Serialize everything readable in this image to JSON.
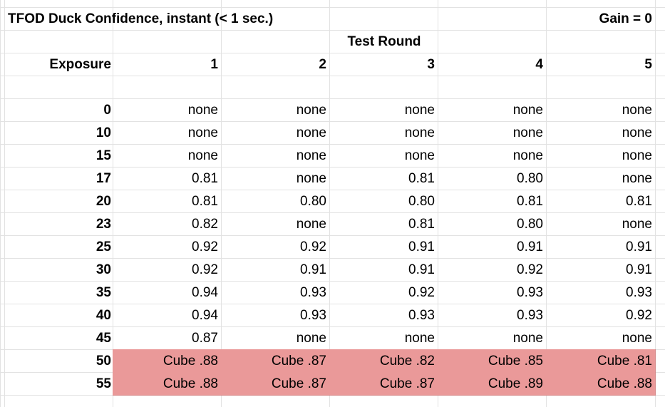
{
  "title": "TFOD Duck Confidence, instant (< 1 sec.)",
  "gain": "Gain = 0",
  "test_round_label": "Test Round",
  "exposure_label": "Exposure",
  "rounds": [
    "1",
    "2",
    "3",
    "4",
    "5"
  ],
  "highlight_color": "#ea9999",
  "rows": [
    {
      "exposure": "0",
      "values": [
        "none",
        "none",
        "none",
        "none",
        "none"
      ],
      "highlight": false
    },
    {
      "exposure": "10",
      "values": [
        "none",
        "none",
        "none",
        "none",
        "none"
      ],
      "highlight": false
    },
    {
      "exposure": "15",
      "values": [
        "none",
        "none",
        "none",
        "none",
        "none"
      ],
      "highlight": false
    },
    {
      "exposure": "17",
      "values": [
        "0.81",
        "none",
        "0.81",
        "0.80",
        "none"
      ],
      "highlight": false
    },
    {
      "exposure": "20",
      "values": [
        "0.81",
        "0.80",
        "0.80",
        "0.81",
        "0.81"
      ],
      "highlight": false
    },
    {
      "exposure": "23",
      "values": [
        "0.82",
        "none",
        "0.81",
        "0.80",
        "none"
      ],
      "highlight": false
    },
    {
      "exposure": "25",
      "values": [
        "0.92",
        "0.92",
        "0.91",
        "0.91",
        "0.91"
      ],
      "highlight": false
    },
    {
      "exposure": "30",
      "values": [
        "0.92",
        "0.91",
        "0.91",
        "0.92",
        "0.91"
      ],
      "highlight": false
    },
    {
      "exposure": "35",
      "values": [
        "0.94",
        "0.93",
        "0.92",
        "0.93",
        "0.93"
      ],
      "highlight": false
    },
    {
      "exposure": "40",
      "values": [
        "0.94",
        "0.93",
        "0.93",
        "0.93",
        "0.92"
      ],
      "highlight": false
    },
    {
      "exposure": "45",
      "values": [
        "0.87",
        "none",
        "none",
        "none",
        "none"
      ],
      "highlight": false
    },
    {
      "exposure": "50",
      "values": [
        "Cube .88",
        "Cube .87",
        "Cube .82",
        "Cube .85",
        "Cube .81"
      ],
      "highlight": true
    },
    {
      "exposure": "55",
      "values": [
        "Cube .88",
        "Cube .87",
        "Cube .87",
        "Cube .89",
        "Cube .88"
      ],
      "highlight": true
    }
  ]
}
